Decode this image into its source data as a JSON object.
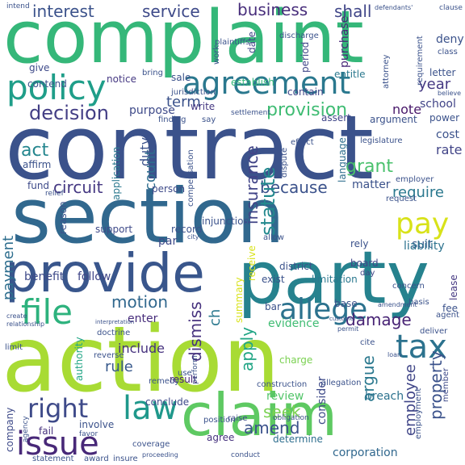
{
  "words": [
    {
      "text": "complaint",
      "color": "#35b779",
      "rot": false
    },
    {
      "text": "contract",
      "color": "#3b528b",
      "rot": false
    },
    {
      "text": "section",
      "color": "#31688e",
      "rot": false
    },
    {
      "text": "action",
      "color": "#a8db34",
      "rot": false
    },
    {
      "text": "party",
      "color": "#26828e",
      "rot": false
    },
    {
      "text": "provide",
      "color": "#39568c",
      "rot": false
    },
    {
      "text": "claim",
      "color": "#5ec962",
      "rot": false
    },
    {
      "text": "agreement",
      "color": "#2a788e",
      "rot": false
    },
    {
      "text": "policy",
      "color": "#1f9e89",
      "rot": false
    },
    {
      "text": "law",
      "color": "#1f988b",
      "rot": false
    },
    {
      "text": "issue",
      "color": "#482878",
      "rot": false
    },
    {
      "text": "file",
      "color": "#2db27d",
      "rot": false
    },
    {
      "text": "pay",
      "color": "#d8e219",
      "rot": false
    },
    {
      "text": "tax",
      "color": "#2c728e",
      "rot": false
    },
    {
      "text": "allege",
      "color": "#2c728e",
      "rot": false
    },
    {
      "text": "right",
      "color": "#3e4a89",
      "rot": false
    },
    {
      "text": "decision",
      "color": "#433e85",
      "rot": false
    },
    {
      "text": "provision",
      "color": "#3fbc73",
      "rot": false
    },
    {
      "text": "interest",
      "color": "#3b528b",
      "rot": false
    },
    {
      "text": "service",
      "color": "#3e4a89",
      "rot": false
    },
    {
      "text": "business",
      "color": "#472d7b",
      "rot": false
    },
    {
      "text": "shall",
      "color": "#404688",
      "rot": false
    },
    {
      "text": "circuit",
      "color": "#453882",
      "rot": false
    },
    {
      "text": "motion",
      "color": "#31688e",
      "rot": false
    },
    {
      "text": "damage",
      "color": "#482475",
      "rot": false
    },
    {
      "text": "grant",
      "color": "#4ac16d",
      "rot": false
    },
    {
      "text": "require",
      "color": "#2a788e",
      "rot": false
    },
    {
      "text": "because",
      "color": "#3b528b",
      "rot": false
    },
    {
      "text": "year",
      "color": "#453882",
      "rot": false
    },
    {
      "text": "act",
      "color": "#24868e",
      "rot": false
    },
    {
      "text": "term",
      "color": "#3b528b",
      "rot": false
    },
    {
      "text": "amend",
      "color": "#3b528b",
      "rot": false
    },
    {
      "text": "seek",
      "color": "#7ad151",
      "rot": false
    },
    {
      "text": "rule",
      "color": "#38598c",
      "rot": false
    },
    {
      "text": "include",
      "color": "#46327e",
      "rot": false
    },
    {
      "text": "argue",
      "color": "#2a788e",
      "rot": true
    },
    {
      "text": "dismiss",
      "color": "#46327e",
      "rot": true
    },
    {
      "text": "insurance",
      "color": "#414487",
      "rot": true
    },
    {
      "text": "statute",
      "color": "#23898e",
      "rot": true
    },
    {
      "text": "property",
      "color": "#3b528b",
      "rot": true
    },
    {
      "text": "employee",
      "color": "#404688",
      "rot": true
    },
    {
      "text": "apply",
      "color": "#21a585",
      "rot": true
    },
    {
      "text": "payment",
      "color": "#2e6e8e",
      "rot": true
    },
    {
      "text": "count",
      "color": "#2e6e8e",
      "rot": true
    },
    {
      "text": "duty",
      "color": "#3b528b",
      "rot": true
    },
    {
      "text": "ch",
      "color": "#2a788e",
      "rot": true
    },
    {
      "text": "par",
      "color": "#3e4a89",
      "rot": false
    },
    {
      "text": "purpose",
      "color": "#3e4a89",
      "rot": false
    },
    {
      "text": "note",
      "color": "#48186a",
      "rot": false
    },
    {
      "text": "rate",
      "color": "#414487",
      "rot": false
    },
    {
      "text": "cost",
      "color": "#3b528b",
      "rot": false
    },
    {
      "text": "suit",
      "color": "#38598c",
      "rot": false
    },
    {
      "text": "liability",
      "color": "#2c728e",
      "rot": false
    },
    {
      "text": "benefit",
      "color": "#3e4a89",
      "rot": false
    },
    {
      "text": "follow",
      "color": "#404688",
      "rot": false
    },
    {
      "text": "enter",
      "color": "#472d7b",
      "rot": false
    },
    {
      "text": "evidence",
      "color": "#3fbc73",
      "rot": false
    },
    {
      "text": "corporation",
      "color": "#31688e",
      "rot": false
    },
    {
      "text": "review",
      "color": "#52c569",
      "rot": false
    },
    {
      "text": "breach",
      "color": "#2c728e",
      "rot": false
    },
    {
      "text": "fund",
      "color": "#3e4a89",
      "rot": false
    },
    {
      "text": "matter",
      "color": "#3b528b",
      "rot": false
    },
    {
      "text": "school",
      "color": "#414487",
      "rot": false
    },
    {
      "text": "contain",
      "color": "#404688",
      "rot": false
    },
    {
      "text": "establish",
      "color": "#35b779",
      "rot": false
    },
    {
      "text": "give",
      "color": "#3e4a89",
      "rot": false
    },
    {
      "text": "contend",
      "color": "#3b528b",
      "rot": false
    },
    {
      "text": "notice",
      "color": "#453882",
      "rot": false
    },
    {
      "text": "sale",
      "color": "#3b528b",
      "rot": false
    },
    {
      "text": "determine",
      "color": "#2e6e8e",
      "rot": false
    },
    {
      "text": "agree",
      "color": "#46327e",
      "rot": false
    },
    {
      "text": "conclude",
      "color": "#3e4a89",
      "rot": false
    },
    {
      "text": "result",
      "color": "#482475",
      "rot": false
    },
    {
      "text": "involve",
      "color": "#3b528b",
      "rot": false
    },
    {
      "text": "fail",
      "color": "#46327e",
      "rot": false
    },
    {
      "text": "limitation",
      "color": "#2a788e",
      "rot": false
    },
    {
      "text": "support",
      "color": "#3e4a89",
      "rot": false
    },
    {
      "text": "record",
      "color": "#3b528b",
      "rot": false
    },
    {
      "text": "statement",
      "color": "#3b528b",
      "rot": false
    },
    {
      "text": "award",
      "color": "#3b528b",
      "rot": false
    },
    {
      "text": "base",
      "color": "#3b528b",
      "rot": false
    },
    {
      "text": "board",
      "color": "#404688",
      "rot": false
    },
    {
      "text": "day",
      "color": "#404688",
      "rot": false
    },
    {
      "text": "lease",
      "color": "#453882",
      "rot": true
    },
    {
      "text": "fee",
      "color": "#3b528b",
      "rot": false
    },
    {
      "text": "employer",
      "color": "#3b528b",
      "rot": false
    },
    {
      "text": "power",
      "color": "#3b528b",
      "rot": false
    },
    {
      "text": "letter",
      "color": "#3b528b",
      "rot": false
    },
    {
      "text": "entitle",
      "color": "#2a788e",
      "rot": false
    },
    {
      "text": "purchase",
      "color": "#482878",
      "rot": true
    },
    {
      "text": "deny",
      "color": "#3b528b",
      "rot": false
    },
    {
      "text": "assert",
      "color": "#404688",
      "rot": false
    },
    {
      "text": "write",
      "color": "#453882",
      "rot": false
    },
    {
      "text": "person",
      "color": "#3e4a89",
      "rot": false
    },
    {
      "text": "language",
      "color": "#2e6e8e",
      "rot": true
    },
    {
      "text": "period",
      "color": "#404688",
      "rot": true
    },
    {
      "text": "date",
      "color": "#404688",
      "rot": true
    },
    {
      "text": "affirm",
      "color": "#3b528b",
      "rot": false
    },
    {
      "text": "effect",
      "color": "#3b528b",
      "rot": false
    },
    {
      "text": "consider",
      "color": "#3e4a89",
      "rot": true
    },
    {
      "text": "authority",
      "color": "#21a585",
      "rot": true
    },
    {
      "text": "company",
      "color": "#3e4a89",
      "rot": true
    },
    {
      "text": "member",
      "color": "#3e4a89",
      "rot": true
    },
    {
      "text": "employment",
      "color": "#3b528b",
      "rot": true
    },
    {
      "text": "summary",
      "color": "#d8e219",
      "rot": true
    },
    {
      "text": "receive",
      "color": "#d8e219",
      "rot": true
    },
    {
      "text": "application",
      "color": "#2a788e",
      "rot": true
    },
    {
      "text": "reason",
      "color": "#3b528b",
      "rot": true
    },
    {
      "text": "exist",
      "color": "#3b528b",
      "rot": false
    },
    {
      "text": "district",
      "color": "#3b528b",
      "rot": false
    },
    {
      "text": "rely",
      "color": "#3b528b",
      "rot": false
    },
    {
      "text": "charge",
      "color": "#7ad151",
      "rot": false
    },
    {
      "text": "raise",
      "color": "#3e4a89",
      "rot": false
    },
    {
      "text": "position",
      "color": "#3b528b",
      "rot": false
    },
    {
      "text": "obligation",
      "color": "#3b528b",
      "rot": false
    },
    {
      "text": "bar",
      "color": "#3b528b",
      "rot": false
    },
    {
      "text": "limit",
      "color": "#3b528b",
      "rot": false
    },
    {
      "text": "use",
      "color": "#3b528b",
      "rot": false
    },
    {
      "text": "injunction",
      "color": "#3b528b",
      "rot": false
    },
    {
      "text": "compensation",
      "color": "#3b528b",
      "rot": true
    },
    {
      "text": "jurisdiction",
      "color": "#3b528b",
      "rot": false
    },
    {
      "text": "construction",
      "color": "#3b528b",
      "rot": false
    },
    {
      "text": "allegation",
      "color": "#3b528b",
      "rot": false
    },
    {
      "text": "cite",
      "color": "#3b528b",
      "rot": false
    },
    {
      "text": "basis",
      "color": "#3b528b",
      "rot": false
    },
    {
      "text": "deliver",
      "color": "#3b528b",
      "rot": false
    },
    {
      "text": "agent",
      "color": "#3b528b",
      "rot": false
    },
    {
      "text": "concern",
      "color": "#3b528b",
      "rot": false
    },
    {
      "text": "reverse",
      "color": "#3b528b",
      "rot": false
    },
    {
      "text": "doctrine",
      "color": "#3b528b",
      "rot": false
    },
    {
      "text": "remedy",
      "color": "#3b528b",
      "rot": false
    },
    {
      "text": "attorney",
      "color": "#3b528b",
      "rot": true
    },
    {
      "text": "work",
      "color": "#3b528b",
      "rot": true
    },
    {
      "text": "argument",
      "color": "#3b528b",
      "rot": false
    },
    {
      "text": "request",
      "color": "#3b528b",
      "rot": false
    },
    {
      "text": "legislature",
      "color": "#3b528b",
      "rot": false
    },
    {
      "text": "settlement",
      "color": "#3b528b",
      "rot": false
    },
    {
      "text": "finding",
      "color": "#3b528b",
      "rot": false
    },
    {
      "text": "say",
      "color": "#3b528b",
      "rot": false
    },
    {
      "text": "requirement",
      "color": "#3b528b",
      "rot": true
    },
    {
      "text": "discharge",
      "color": "#3b528b",
      "rot": false
    },
    {
      "text": "plaintiffs",
      "color": "#3b528b",
      "rot": false
    },
    {
      "text": "relief",
      "color": "#3b528b",
      "rot": false
    },
    {
      "text": "class",
      "color": "#3b528b",
      "rot": false
    },
    {
      "text": "coverage",
      "color": "#3b528b",
      "rot": false
    },
    {
      "text": "dispute",
      "color": "#3b528b",
      "rot": true
    },
    {
      "text": "allow",
      "color": "#3b528b",
      "rot": false
    },
    {
      "text": "city",
      "color": "#3b528b",
      "rot": false
    },
    {
      "text": "intend",
      "color": "#3b528b",
      "rot": false
    },
    {
      "text": "defendants'",
      "color": "#3b528b",
      "rot": false
    },
    {
      "text": "clause",
      "color": "#3b528b",
      "rot": false
    },
    {
      "text": "believe",
      "color": "#3b528b",
      "rot": false
    },
    {
      "text": "perform",
      "color": "#3b528b",
      "rot": true
    },
    {
      "text": "insure",
      "color": "#3b528b",
      "rot": false
    },
    {
      "text": "proceeding",
      "color": "#3b528b",
      "rot": false
    },
    {
      "text": "relationship",
      "color": "#3b528b",
      "rot": false
    },
    {
      "text": "create",
      "color": "#3b528b",
      "rot": false
    },
    {
      "text": "loan",
      "color": "#3b528b",
      "rot": false
    },
    {
      "text": "permit",
      "color": "#3b528b",
      "rot": false
    },
    {
      "text": "conduct",
      "color": "#3b528b",
      "rot": false
    },
    {
      "text": "bring",
      "color": "#3b528b",
      "rot": false
    },
    {
      "text": "agency",
      "color": "#3b528b",
      "rot": true
    },
    {
      "text": "favor",
      "color": "#3b528b",
      "rot": false
    },
    {
      "text": "interpretation",
      "color": "#3b528b",
      "rot": false
    },
    {
      "text": "amendment",
      "color": "#3b528b",
      "rot": false
    },
    {
      "text": "customer",
      "color": "#3b528b",
      "rot": false
    }
  ]
}
